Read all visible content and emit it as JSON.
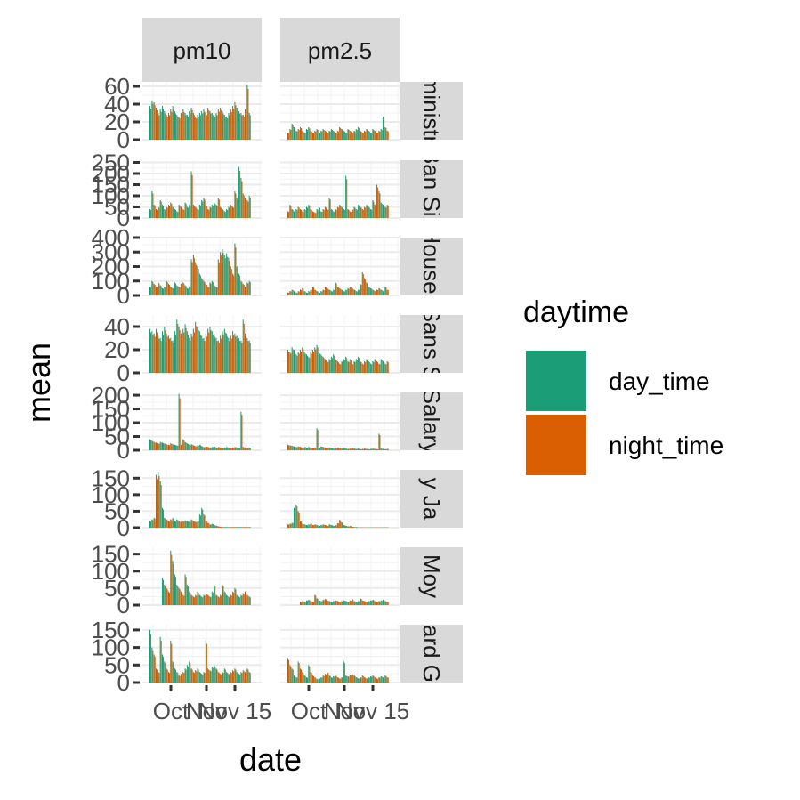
{
  "chart_data": {
    "type": "bar",
    "facet_cols": [
      "pm10",
      "pm2.5"
    ],
    "facet_rows": [
      "Administrian",
      "Ban Sin",
      "Houses",
      "Sans S",
      "Salary",
      "y Ja",
      "Moy",
      "ard G"
    ],
    "xlabel": "date",
    "ylabel": "mean",
    "x_ticks": [
      "Oct",
      "Nov",
      "Nov 15"
    ],
    "legend": {
      "title": "daytime",
      "position": "right",
      "entries": [
        {
          "name": "day_time",
          "color": "#1b9e77"
        },
        {
          "name": "night_time",
          "color": "#d95f02"
        }
      ]
    },
    "grid": true,
    "rows": [
      {
        "ylim": [
          0,
          65
        ],
        "yticks": [
          0,
          20,
          40,
          60
        ],
        "pm10": [
          38,
          44,
          42,
          36,
          30,
          34,
          38,
          32,
          28,
          30,
          34,
          38,
          32,
          28,
          26,
          30,
          34,
          30,
          28,
          32,
          36,
          30,
          26,
          28,
          30,
          32,
          34,
          30,
          36,
          32,
          30,
          28,
          30,
          34,
          36,
          32,
          28,
          26,
          30,
          34,
          38,
          42,
          36,
          32,
          30,
          28,
          34,
          62,
          30
        ],
        "pm2.5": [
          8,
          12,
          18,
          14,
          10,
          12,
          14,
          10,
          8,
          12,
          14,
          10,
          8,
          10,
          12,
          8,
          10,
          12,
          10,
          8,
          10,
          12,
          10,
          8,
          10,
          14,
          12,
          10,
          8,
          12,
          10,
          8,
          10,
          12,
          14,
          10,
          8,
          10,
          12,
          10,
          8,
          12,
          10,
          8,
          10,
          12,
          26,
          14,
          10
        ]
      },
      {
        "ylim": [
          0,
          260
        ],
        "yticks": [
          0,
          50,
          100,
          150,
          200,
          250
        ],
        "pm10": [
          40,
          120,
          60,
          40,
          50,
          80,
          60,
          40,
          50,
          60,
          70,
          50,
          40,
          30,
          60,
          50,
          40,
          70,
          50,
          60,
          210,
          60,
          50,
          40,
          60,
          80,
          90,
          60,
          40,
          50,
          60,
          70,
          60,
          90,
          50,
          40,
          30,
          40,
          50,
          60,
          50,
          120,
          90,
          230,
          180,
          110,
          90,
          80,
          100
        ],
        "pm2.5": [
          30,
          60,
          40,
          30,
          40,
          50,
          40,
          30,
          40,
          50,
          60,
          40,
          30,
          25,
          40,
          50,
          30,
          40,
          50,
          40,
          90,
          40,
          30,
          40,
          50,
          60,
          50,
          40,
          190,
          40,
          30,
          40,
          50,
          40,
          60,
          50,
          40,
          50,
          60,
          50,
          40,
          80,
          60,
          150,
          120,
          70,
          60,
          50,
          60
        ]
      },
      {
        "ylim": [
          0,
          400
        ],
        "yticks": [
          0,
          100,
          200,
          300,
          400
        ],
        "pm10": [
          60,
          100,
          80,
          60,
          90,
          70,
          50,
          60,
          100,
          80,
          60,
          50,
          90,
          70,
          60,
          80,
          90,
          70,
          50,
          60,
          250,
          280,
          230,
          200,
          150,
          120,
          100,
          80,
          60,
          90,
          100,
          70,
          60,
          250,
          300,
          320,
          280,
          290,
          260,
          200,
          150,
          360,
          200,
          150,
          100,
          80,
          60,
          90,
          100
        ],
        "pm2.5": [
          20,
          30,
          40,
          30,
          20,
          30,
          40,
          50,
          30,
          20,
          30,
          40,
          60,
          40,
          30,
          20,
          30,
          40,
          60,
          50,
          40,
          30,
          40,
          90,
          60,
          50,
          40,
          30,
          40,
          50,
          60,
          50,
          40,
          30,
          40,
          80,
          160,
          120,
          90,
          60,
          50,
          40,
          30,
          40,
          50,
          40,
          30,
          60,
          40
        ]
      },
      {
        "ylim": [
          0,
          50
        ],
        "yticks": [
          0,
          20,
          40
        ],
        "pm10": [
          38,
          36,
          34,
          38,
          32,
          30,
          36,
          40,
          34,
          32,
          30,
          28,
          36,
          46,
          40,
          34,
          38,
          42,
          36,
          30,
          34,
          38,
          44,
          40,
          36,
          32,
          30,
          34,
          38,
          40,
          36,
          34,
          30,
          28,
          32,
          36,
          38,
          34,
          30,
          32,
          36,
          34,
          32,
          30,
          28,
          46,
          34,
          30,
          28
        ],
        "pm2.5": [
          20,
          18,
          22,
          20,
          16,
          18,
          20,
          22,
          18,
          16,
          14,
          18,
          20,
          22,
          24,
          18,
          16,
          14,
          12,
          10,
          12,
          14,
          16,
          12,
          10,
          8,
          10,
          12,
          14,
          10,
          12,
          8,
          10,
          12,
          14,
          10,
          8,
          10,
          12,
          10,
          8,
          10,
          12,
          10,
          8,
          12,
          10,
          8,
          10
        ]
      },
      {
        "ylim": [
          0,
          210
        ],
        "yticks": [
          0,
          50,
          100,
          150,
          200
        ],
        "pm10": [
          40,
          35,
          30,
          28,
          25,
          30,
          28,
          25,
          22,
          20,
          25,
          22,
          20,
          18,
          205,
          20,
          40,
          30,
          25,
          20,
          22,
          18,
          15,
          18,
          20,
          15,
          12,
          14,
          12,
          10,
          12,
          14,
          10,
          12,
          10,
          8,
          10,
          12,
          10,
          8,
          10,
          12,
          10,
          8,
          140,
          12,
          10,
          8,
          10
        ],
        "pm2.5": [
          20,
          18,
          16,
          14,
          12,
          14,
          12,
          10,
          12,
          10,
          12,
          10,
          8,
          10,
          80,
          10,
          14,
          12,
          10,
          8,
          10,
          8,
          6,
          8,
          10,
          8,
          6,
          8,
          6,
          5,
          6,
          8,
          6,
          5,
          6,
          4,
          5,
          6,
          5,
          4,
          5,
          6,
          5,
          4,
          60,
          6,
          5,
          4,
          5
        ]
      },
      {
        "ylim": [
          0,
          175
        ],
        "yticks": [
          0,
          50,
          100,
          150
        ],
        "pm10": [
          20,
          25,
          30,
          160,
          170,
          140,
          60,
          30,
          25,
          20,
          25,
          30,
          20,
          25,
          20,
          18,
          20,
          22,
          20,
          18,
          25,
          20,
          18,
          20,
          40,
          60,
          40,
          20,
          15,
          10,
          12,
          8,
          6,
          4,
          3,
          2,
          2,
          2,
          2,
          2,
          2,
          2,
          2,
          2,
          2,
          2,
          2,
          2,
          2
        ],
        "pm2.5": [
          10,
          12,
          15,
          60,
          70,
          50,
          20,
          12,
          10,
          8,
          10,
          12,
          8,
          10,
          8,
          6,
          8,
          10,
          8,
          6,
          10,
          8,
          6,
          8,
          14,
          24,
          16,
          8,
          6,
          4,
          5,
          3,
          2,
          2,
          1,
          1,
          1,
          1,
          1,
          1,
          1,
          1,
          1,
          1,
          1,
          1,
          1,
          1,
          1
        ]
      },
      {
        "ylim": [
          0,
          170
        ],
        "yticks": [
          0,
          50,
          100,
          150
        ],
        "pm10": [
          0,
          0,
          0,
          0,
          0,
          0,
          80,
          60,
          50,
          40,
          160,
          130,
          90,
          60,
          50,
          40,
          30,
          90,
          60,
          40,
          30,
          25,
          30,
          40,
          30,
          25,
          30,
          35,
          30,
          25,
          40,
          60,
          30,
          25,
          30,
          60,
          40,
          30,
          25,
          30,
          40,
          50,
          30,
          25,
          30,
          35,
          40,
          30,
          25
        ],
        "pm2.5": [
          0,
          0,
          0,
          0,
          0,
          0,
          10,
          12,
          10,
          14,
          16,
          12,
          10,
          30,
          20,
          14,
          12,
          16,
          18,
          14,
          12,
          10,
          12,
          14,
          12,
          10,
          12,
          14,
          12,
          10,
          14,
          18,
          12,
          10,
          12,
          20,
          14,
          12,
          10,
          12,
          14,
          16,
          12,
          10,
          12,
          14,
          16,
          12,
          10
        ]
      },
      {
        "ylim": [
          0,
          165
        ],
        "yticks": [
          0,
          50,
          100,
          150
        ],
        "pm10": [
          150,
          100,
          80,
          40,
          30,
          130,
          80,
          60,
          40,
          30,
          120,
          60,
          40,
          30,
          20,
          25,
          30,
          40,
          50,
          60,
          40,
          30,
          35,
          40,
          30,
          25,
          30,
          120,
          40,
          35,
          45,
          50,
          40,
          30,
          25,
          30,
          40,
          30,
          25,
          30,
          35,
          40,
          30,
          25,
          30,
          35,
          30,
          40,
          30
        ],
        "pm2.5": [
          70,
          50,
          40,
          20,
          15,
          60,
          40,
          30,
          20,
          15,
          50,
          30,
          20,
          15,
          10,
          12,
          15,
          20,
          25,
          30,
          20,
          15,
          18,
          20,
          15,
          12,
          15,
          60,
          20,
          18,
          22,
          25,
          20,
          15,
          12,
          15,
          20,
          15,
          12,
          15,
          18,
          20,
          15,
          12,
          15,
          18,
          15,
          20,
          15
        ]
      }
    ]
  }
}
